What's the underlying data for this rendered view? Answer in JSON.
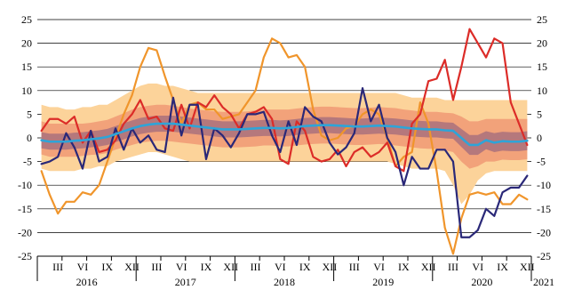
{
  "chart_data": {
    "type": "line",
    "title": "",
    "xlabel": "",
    "ylabel": "",
    "ylim": [
      -25,
      25
    ],
    "yticks": [
      25,
      20,
      15,
      10,
      5,
      0,
      -5,
      -10,
      -15,
      -20,
      -25
    ],
    "y_axis_labels_on_both_sides": true,
    "grid": "horizontal",
    "legend": "none",
    "x_start": "2016-01",
    "month_tick_labels": [
      "III",
      "VI",
      "IX",
      "XII",
      "III",
      "VI",
      "IX",
      "XII",
      "III",
      "VI",
      "IX",
      "XII",
      "III",
      "VI",
      "IX",
      "XII",
      "III",
      "VI",
      "IX",
      "XII"
    ],
    "year_labels": [
      "2016",
      "2017",
      "2018",
      "2019",
      "2020",
      "2021"
    ],
    "band_colors": {
      "outer": "#fcd39a",
      "middle": "#f2a27a",
      "inner": "#b5787c"
    },
    "series": [
      {
        "color": "#f0952b",
        "values": [
          -7,
          -12,
          -16,
          -13.5,
          -13.5,
          -11.5,
          -12,
          -10,
          -5,
          0,
          5,
          9,
          15,
          19,
          18.5,
          13,
          8,
          3,
          7,
          7.5,
          6,
          6,
          4,
          4.5,
          5,
          7.5,
          10,
          17,
          21,
          20,
          17,
          17.5,
          15,
          6,
          0.5,
          -0.5,
          0,
          2,
          2.5,
          5,
          6,
          5,
          0,
          -6,
          -4,
          -3,
          7.5,
          3,
          -7,
          -19,
          -24.5,
          -17,
          -12,
          -11.5,
          -12,
          -11.5,
          -14,
          -14,
          -12,
          -13
        ]
      },
      {
        "color": "#dc2c28",
        "values": [
          1.5,
          4,
          4,
          3,
          4.5,
          -1,
          1.5,
          -3,
          -2.5,
          -0.5,
          3,
          5,
          8,
          4,
          4.5,
          2,
          1.5,
          7,
          2,
          7.5,
          6.5,
          9,
          6.5,
          5,
          2,
          5,
          5.5,
          6.5,
          4,
          -4.5,
          -5.5,
          3.5,
          1.5,
          -4,
          -5,
          -4.5,
          -2.5,
          -6,
          -3,
          -2,
          -4,
          -3,
          -1,
          -6,
          -7,
          3,
          5,
          12,
          12.5,
          16.5,
          8,
          15,
          23,
          20,
          17,
          21,
          20,
          7.5,
          3,
          -1.5
        ]
      },
      {
        "color": "#2a2878",
        "values": [
          -5.5,
          -5,
          -4,
          1,
          -2,
          -6.5,
          1.5,
          -5,
          -4,
          2,
          -2.5,
          2,
          -1,
          0.5,
          -2.5,
          -3,
          8.5,
          0.5,
          7,
          7,
          -4.5,
          2,
          0.5,
          -2,
          1,
          5,
          5,
          5.5,
          0.5,
          -3,
          3.5,
          -1.5,
          6.5,
          4.5,
          3.5,
          -1,
          -3.5,
          -2,
          1,
          10.5,
          3.5,
          7,
          0,
          -3,
          -10,
          -4,
          -6.5,
          -6.5,
          -2.5,
          -2.5,
          -5,
          -21,
          -21,
          -19.5,
          -15,
          -16.5,
          -11.5,
          -10.5,
          -10.5,
          -8
        ]
      },
      {
        "color": "#2ea4d8",
        "values": [
          -0.5,
          -0.8,
          -0.8,
          -0.8,
          -0.6,
          -0.5,
          -0.3,
          -0.1,
          0.2,
          0.8,
          1.4,
          2,
          2.5,
          2.8,
          3,
          3,
          3,
          2.8,
          2.6,
          2.4,
          2.2,
          2,
          1.8,
          1.8,
          1.8,
          1.9,
          2,
          2.1,
          2.1,
          2,
          2.1,
          2.3,
          2.5,
          2.6,
          2.7,
          2.7,
          2.6,
          2.5,
          2.4,
          2.4,
          2.5,
          2.6,
          2.5,
          2.4,
          2.2,
          2,
          1.9,
          1.8,
          1.8,
          1.6,
          1.5,
          0,
          -1.5,
          -1.5,
          -0.5,
          -1,
          -0.7,
          -0.8,
          -0.8,
          -0.6
        ]
      }
    ],
    "bands": {
      "outer_upper": [
        7,
        6.5,
        6.5,
        6,
        6,
        6.5,
        6.5,
        7,
        7,
        8,
        9,
        10,
        11,
        11.5,
        11.5,
        11,
        11,
        10.5,
        10,
        9.5,
        9.5,
        9.5,
        9.5,
        9.5,
        9.5,
        9.5,
        9.5,
        9.5,
        9.5,
        9.5,
        9.5,
        9.5,
        9.5,
        9.5,
        9.5,
        9.5,
        9.5,
        9.5,
        9.5,
        9.5,
        9.5,
        9.5,
        9.5,
        9.5,
        9,
        8.5,
        8.5,
        8.5,
        8.5,
        8,
        8,
        8,
        8,
        8,
        8,
        8,
        8,
        8,
        8,
        8
      ],
      "outer_lower": [
        -6.5,
        -7,
        -7,
        -7,
        -7,
        -6.5,
        -6.5,
        -6,
        -6,
        -5,
        -4.5,
        -4,
        -3.5,
        -3,
        -3,
        -3.5,
        -4,
        -4.5,
        -5,
        -5,
        -5,
        -5,
        -5,
        -5,
        -5,
        -5,
        -5,
        -5,
        -5,
        -5,
        -5,
        -5,
        -5,
        -5,
        -5,
        -5,
        -5,
        -5,
        -5,
        -5,
        -5,
        -5,
        -5,
        -5.5,
        -6,
        -6.5,
        -6.5,
        -6.5,
        -6.5,
        -7,
        -10,
        -14,
        -12,
        -9,
        -7.5,
        -7,
        -7,
        -7,
        -7,
        -7
      ],
      "middle_upper": [
        3.5,
        3,
        3,
        3,
        3,
        3,
        3.2,
        3.5,
        3.8,
        4.5,
        5.2,
        6,
        6.5,
        6.8,
        7,
        7,
        6.8,
        6.5,
        6.2,
        6,
        5.8,
        5.6,
        5.5,
        5.5,
        5.5,
        5.6,
        5.8,
        6,
        6,
        6,
        6,
        6.2,
        6.4,
        6.5,
        6.6,
        6.6,
        6.5,
        6.4,
        6.3,
        6.3,
        6.4,
        6.5,
        6.4,
        6.3,
        6,
        5.8,
        5.6,
        5.5,
        5.5,
        5.3,
        5.2,
        4.5,
        3.5,
        3.5,
        4,
        4,
        4,
        4,
        4,
        4
      ],
      "middle_lower": [
        -3.5,
        -4,
        -4,
        -4,
        -4,
        -3.8,
        -3.6,
        -3.5,
        -3.2,
        -2.5,
        -2,
        -1.5,
        -1,
        -0.8,
        -0.6,
        -0.6,
        -0.8,
        -1,
        -1.2,
        -1.4,
        -1.6,
        -1.8,
        -2,
        -2,
        -2,
        -1.9,
        -1.8,
        -1.6,
        -1.6,
        -1.8,
        -1.8,
        -1.6,
        -1.4,
        -1.3,
        -1.2,
        -1.2,
        -1.3,
        -1.4,
        -1.5,
        -1.5,
        -1.4,
        -1.3,
        -1.4,
        -1.6,
        -1.8,
        -2,
        -2.2,
        -2.3,
        -2.3,
        -2.6,
        -3,
        -5,
        -6.5,
        -6,
        -5,
        -5,
        -4.6,
        -4.7,
        -4.7,
        -4.5
      ],
      "inner_upper": [
        1.2,
        0.9,
        0.9,
        0.9,
        1.1,
        1.2,
        1.4,
        1.6,
        1.9,
        2.5,
        3.1,
        3.7,
        4.2,
        4.5,
        4.7,
        4.7,
        4.7,
        4.5,
        4.3,
        4.1,
        3.9,
        3.7,
        3.5,
        3.5,
        3.5,
        3.6,
        3.7,
        3.8,
        3.8,
        3.7,
        3.8,
        4,
        4.2,
        4.3,
        4.4,
        4.4,
        4.3,
        4.2,
        4.1,
        4.1,
        4.2,
        4.3,
        4.2,
        4.1,
        3.9,
        3.7,
        3.6,
        3.5,
        3.5,
        3.3,
        3.2,
        1.9,
        0.6,
        0.6,
        1.4,
        1,
        1.3,
        1.2,
        1.2,
        1.4
      ],
      "inner_lower": [
        -2.2,
        -2.5,
        -2.5,
        -2.5,
        -2.3,
        -2.2,
        -2,
        -1.8,
        -1.5,
        -0.9,
        -0.3,
        0.3,
        0.8,
        1.1,
        1.3,
        1.3,
        1.3,
        1.1,
        0.9,
        0.7,
        0.5,
        0.3,
        0.1,
        0.1,
        0.1,
        0.2,
        0.3,
        0.4,
        0.4,
        0.3,
        0.4,
        0.6,
        0.8,
        0.9,
        1,
        1,
        0.9,
        0.8,
        0.7,
        0.7,
        0.8,
        0.9,
        0.8,
        0.7,
        0.5,
        0.3,
        0.2,
        0.1,
        0.1,
        -0.1,
        -0.2,
        -1.9,
        -3.6,
        -3.6,
        -2.4,
        -3,
        -2.7,
        -2.8,
        -2.8,
        -2.6
      ]
    }
  }
}
